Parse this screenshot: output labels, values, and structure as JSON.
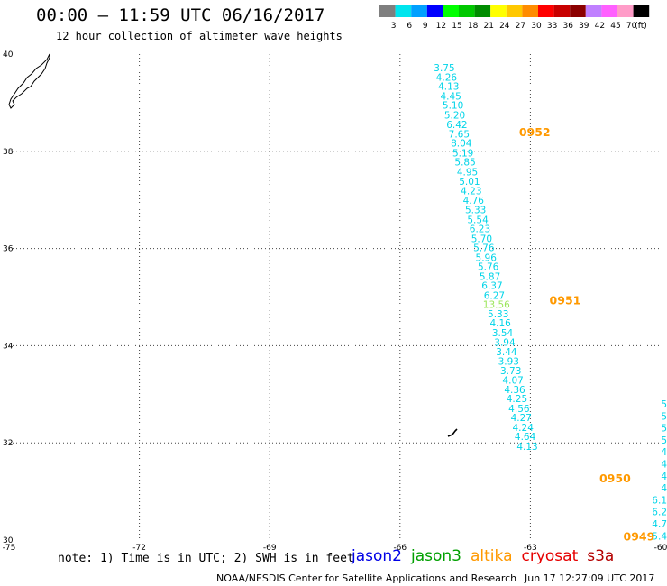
{
  "header": {
    "title": "00:00 – 11:59 UTC 06/16/2017",
    "subtitle": "12 hour collection of altimeter wave heights"
  },
  "legend": {
    "unit": "(ft)",
    "bins": [
      {
        "label": "3",
        "color": "#7f7f7f"
      },
      {
        "label": "6",
        "color": "#00e5ee"
      },
      {
        "label": "9",
        "color": "#00a0ff"
      },
      {
        "label": "12",
        "color": "#0000ff"
      },
      {
        "label": "15",
        "color": "#00ff00"
      },
      {
        "label": "18",
        "color": "#00c800"
      },
      {
        "label": "21",
        "color": "#008c00"
      },
      {
        "label": "24",
        "color": "#ffff00"
      },
      {
        "label": "27",
        "color": "#ffc800"
      },
      {
        "label": "30",
        "color": "#ff8c00"
      },
      {
        "label": "33",
        "color": "#ff0000"
      },
      {
        "label": "36",
        "color": "#c80000"
      },
      {
        "label": "39",
        "color": "#8b0000"
      },
      {
        "label": "42",
        "color": "#c080ff"
      },
      {
        "label": "45",
        "color": "#ff60ff"
      },
      {
        "label": "70",
        "color": "#ff9cc8"
      },
      {
        "label": "",
        "color": "#000000"
      }
    ]
  },
  "map": {
    "lon_range": [
      -75,
      -60
    ],
    "lat_range": [
      30,
      40
    ],
    "lon_ticks": [
      "-75",
      "-72",
      "-69",
      "-66",
      "-63",
      "-60"
    ],
    "lat_ticks": [
      "40",
      "38",
      "36",
      "34",
      "32",
      "30"
    ],
    "track": {
      "color": "#00d4e8",
      "points": [
        {
          "lon": -64.98,
          "lat": 39.72,
          "v": "3.75"
        },
        {
          "lon": -64.93,
          "lat": 39.53,
          "v": "4.26"
        },
        {
          "lon": -64.88,
          "lat": 39.34,
          "v": "4.13"
        },
        {
          "lon": -64.83,
          "lat": 39.14,
          "v": "4.45"
        },
        {
          "lon": -64.78,
          "lat": 38.95,
          "v": "5.10"
        },
        {
          "lon": -64.74,
          "lat": 38.75,
          "v": "5.20"
        },
        {
          "lon": -64.69,
          "lat": 38.55,
          "v": "6.42"
        },
        {
          "lon": -64.64,
          "lat": 38.36,
          "v": "7.65"
        },
        {
          "lon": -64.59,
          "lat": 38.17,
          "v": "8.04"
        },
        {
          "lon": -64.55,
          "lat": 37.97,
          "v": "5.19"
        },
        {
          "lon": -64.5,
          "lat": 37.78,
          "v": "5.85"
        },
        {
          "lon": -64.45,
          "lat": 37.58,
          "v": "4.95"
        },
        {
          "lon": -64.4,
          "lat": 37.38,
          "v": "5.01"
        },
        {
          "lon": -64.36,
          "lat": 37.19,
          "v": "4.23"
        },
        {
          "lon": -64.31,
          "lat": 36.99,
          "v": "4.76"
        },
        {
          "lon": -64.26,
          "lat": 36.8,
          "v": "5.33"
        },
        {
          "lon": -64.21,
          "lat": 36.6,
          "v": "5.54"
        },
        {
          "lon": -64.16,
          "lat": 36.41,
          "v": "6.23"
        },
        {
          "lon": -64.12,
          "lat": 36.21,
          "v": "5.70"
        },
        {
          "lon": -64.07,
          "lat": 36.02,
          "v": "5.76"
        },
        {
          "lon": -64.02,
          "lat": 35.82,
          "v": "5.96"
        },
        {
          "lon": -63.97,
          "lat": 35.63,
          "v": "5.76"
        },
        {
          "lon": -63.93,
          "lat": 35.43,
          "v": "5.87"
        },
        {
          "lon": -63.88,
          "lat": 35.24,
          "v": "6.37"
        },
        {
          "lon": -63.83,
          "lat": 35.04,
          "v": "6.27"
        },
        {
          "lon": -63.78,
          "lat": 34.85,
          "v": "13.56",
          "color": "#9ce65a"
        },
        {
          "lon": -63.74,
          "lat": 34.66,
          "v": "5.33"
        },
        {
          "lon": -63.69,
          "lat": 34.47,
          "v": "4.16"
        },
        {
          "lon": -63.64,
          "lat": 34.27,
          "v": "3.54"
        },
        {
          "lon": -63.59,
          "lat": 34.07,
          "v": "3.94"
        },
        {
          "lon": -63.55,
          "lat": 33.88,
          "v": "3.44"
        },
        {
          "lon": -63.5,
          "lat": 33.68,
          "v": "3.93"
        },
        {
          "lon": -63.45,
          "lat": 33.49,
          "v": "3.73"
        },
        {
          "lon": -63.4,
          "lat": 33.29,
          "v": "4.07"
        },
        {
          "lon": -63.36,
          "lat": 33.1,
          "v": "4.36"
        },
        {
          "lon": -63.31,
          "lat": 32.91,
          "v": "4.25"
        },
        {
          "lon": -63.26,
          "lat": 32.71,
          "v": "4.56"
        },
        {
          "lon": -63.21,
          "lat": 32.52,
          "v": "4.27"
        },
        {
          "lon": -63.17,
          "lat": 32.32,
          "v": "4.24"
        },
        {
          "lon": -63.12,
          "lat": 32.13,
          "v": "4.64"
        },
        {
          "lon": -63.07,
          "lat": 31.93,
          "v": "4.13"
        }
      ]
    },
    "times": [
      {
        "label": "0952",
        "lon": -62.9,
        "lat": 38.4
      },
      {
        "label": "0951",
        "lon": -62.2,
        "lat": 34.94
      },
      {
        "label": "0950",
        "lon": -61.05,
        "lat": 31.28
      },
      {
        "label": "0949",
        "lon": -60.5,
        "lat": 30.08
      }
    ],
    "edge_values": [
      "5",
      "5",
      "5",
      "5",
      "4",
      "4",
      "4",
      "4",
      "6.1",
      "6.2",
      "4.7",
      "5.4"
    ]
  },
  "notes": {
    "text": "note: 1) Time is in UTC; 2) SWH is in feet",
    "satellites": [
      {
        "name": "jason2",
        "color": "#0000e6"
      },
      {
        "name": "jason3",
        "color": "#00a000"
      },
      {
        "name": "altika",
        "color": "#ff9900"
      },
      {
        "name": "cryosat",
        "color": "#e60000"
      },
      {
        "name": "s3a",
        "color": "#b40000"
      }
    ]
  },
  "footer": {
    "credit": "NOAA/NESDIS Center for Satellite Applications and Research",
    "timestamp": "Jun 17 12:27:09 UTC 2017"
  }
}
